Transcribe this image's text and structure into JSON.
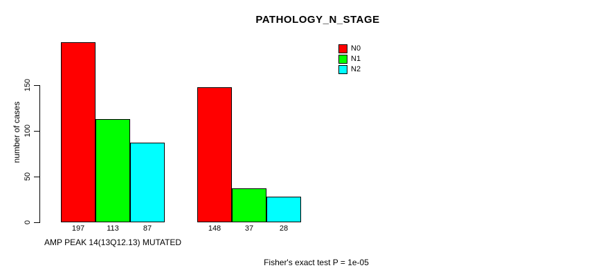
{
  "chart_data": {
    "type": "bar",
    "title": "PATHOLOGY_N_STAGE",
    "ylabel": "number of cases",
    "xlabel": "",
    "yticks": [
      0,
      50,
      100,
      150
    ],
    "ylim": [
      0,
      205
    ],
    "grid": false,
    "bar_value_labels": true,
    "categories": [
      "AMP PEAK 14(13Q12.13) MUTATED",
      ""
    ],
    "series": [
      {
        "name": "N0",
        "color": "#ff0000",
        "values": [
          197,
          148
        ]
      },
      {
        "name": "N1",
        "color": "#00ff00",
        "values": [
          113,
          37
        ]
      },
      {
        "name": "N2",
        "color": "#00ffff",
        "values": [
          87,
          28
        ]
      }
    ],
    "legend": {
      "position": "top-right",
      "entries": [
        "N0",
        "N1",
        "N2"
      ]
    },
    "annotation": "Fisher's exact test P = 1e-05"
  }
}
